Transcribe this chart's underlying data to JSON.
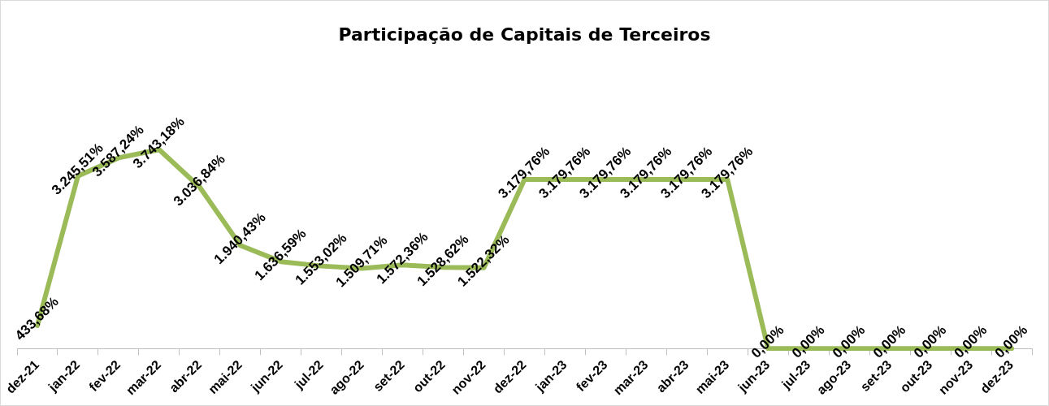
{
  "chart_data": {
    "type": "line",
    "title": "Participação de Capitais de Terceiros",
    "categories": [
      "dez-21",
      "jan-22",
      "fev-22",
      "mar-22",
      "abr-22",
      "mai-22",
      "jun-22",
      "jul-22",
      "ago-22",
      "set-22",
      "out-22",
      "nov-22",
      "dez-22",
      "jan-23",
      "fev-23",
      "mar-23",
      "abr-23",
      "mai-23",
      "jun-23",
      "jul-23",
      "ago-23",
      "set-23",
      "out-23",
      "nov-23",
      "dez-23"
    ],
    "series": [
      {
        "color": "#9bbb59",
        "values": [
          433.68,
          3245.51,
          3587.24,
          3743.18,
          3036.84,
          1940.43,
          1636.59,
          1553.02,
          1509.71,
          1572.36,
          1528.62,
          1522.32,
          3179.76,
          3179.76,
          3179.76,
          3179.76,
          3179.76,
          3179.76,
          0,
          0,
          0,
          0,
          0,
          0,
          0
        ],
        "value_labels": [
          "433,68%",
          "3.245,51%",
          "3.587,24%",
          "3.743,18%",
          "3.036,84%",
          "1.940,43%",
          "1.636,59%",
          "1.553,02%",
          "1.509,71%",
          "1.572,36%",
          "1.528,62%",
          "1.522,32%",
          "3.179,76%",
          "3.179,76%",
          "3.179,76%",
          "3.179,76%",
          "3.179,76%",
          "3.179,76%",
          "0,00%",
          "0,00%",
          "0,00%",
          "0,00%",
          "0,00%",
          "0,00%",
          "0,00%"
        ]
      }
    ],
    "grid": false,
    "legend": false,
    "marker": "none",
    "line_style": "solid",
    "tick_labels": "x"
  }
}
